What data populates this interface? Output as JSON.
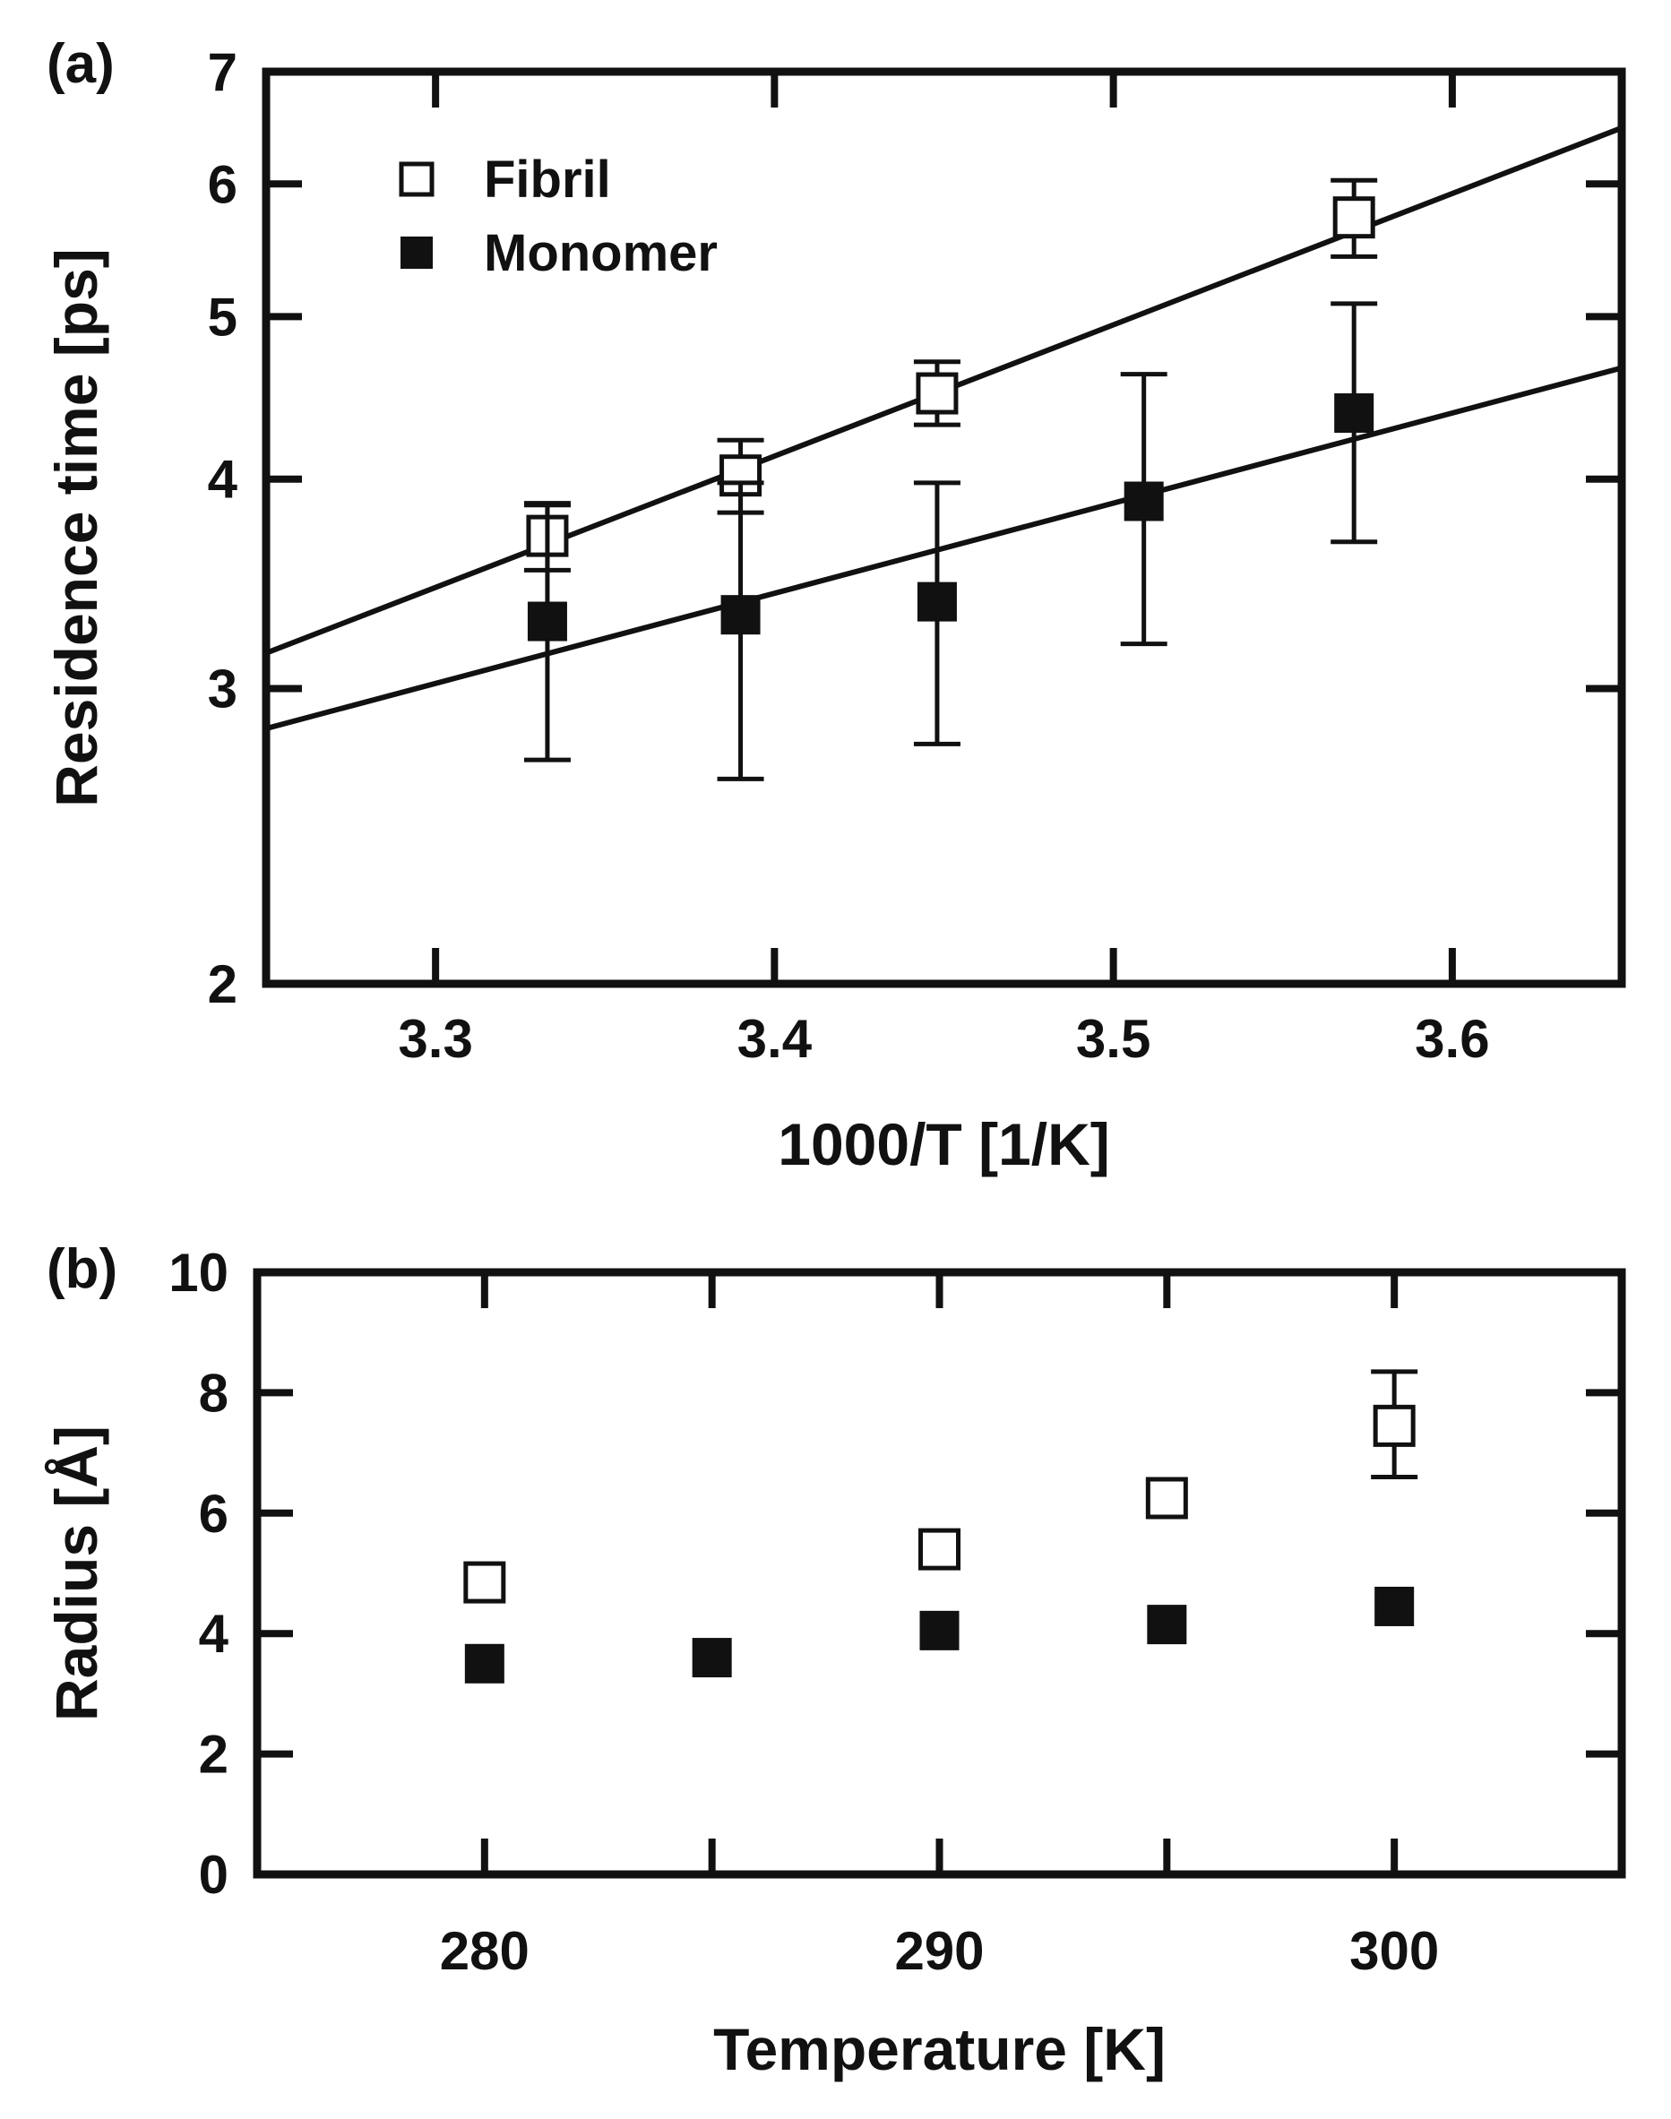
{
  "chart_data": [
    {
      "panel_label": "(a)",
      "type": "scatter",
      "yscale": "log",
      "xlabel": "1000/T [1/K]",
      "ylabel": "Residence time [ps]",
      "xlim": [
        3.25,
        3.65
      ],
      "ylim": [
        2,
        7
      ],
      "xticks": [
        3.3,
        3.4,
        3.5,
        3.6
      ],
      "xtick_labels": [
        "3.3",
        "3.4",
        "3.5",
        "3.6"
      ],
      "yticks": [
        2,
        3,
        4,
        5,
        6,
        7
      ],
      "ytick_labels": [
        "2",
        "3",
        "4",
        "5",
        "6",
        "7"
      ],
      "legend_position": "top-left",
      "series": [
        {
          "name": "Fibril",
          "marker": "open-square",
          "x": [
            3.333,
            3.39,
            3.448,
            3.571
          ],
          "y": [
            3.7,
            4.02,
            4.5,
            5.73
          ],
          "err_low": [
            3.53,
            3.82,
            4.31,
            5.43
          ],
          "err_high": [
            3.87,
            4.22,
            4.7,
            6.03
          ],
          "fit": {
            "x": [
              3.25,
              3.65
            ],
            "y": [
              3.15,
              6.48
            ]
          }
        },
        {
          "name": "Monomer",
          "marker": "filled-square",
          "x": [
            3.333,
            3.39,
            3.448,
            3.509,
            3.571
          ],
          "y": [
            3.29,
            3.32,
            3.38,
            3.88,
            4.38
          ],
          "err_low": [
            2.72,
            2.65,
            2.78,
            3.19,
            3.67
          ],
          "err_high": [
            3.86,
            3.98,
            3.98,
            4.62,
            5.09
          ],
          "fit": {
            "x": [
              3.25,
              3.65
            ],
            "y": [
              2.84,
              4.66
            ]
          }
        }
      ]
    },
    {
      "panel_label": "(b)",
      "type": "scatter",
      "xlabel": "Temperature [K]",
      "ylabel": "Radius [Å]",
      "xlim": [
        275,
        305
      ],
      "ylim": [
        0,
        10
      ],
      "xticks": [
        280,
        285,
        290,
        295,
        300
      ],
      "xtick_labels": [
        "280",
        "",
        "290",
        "",
        "300"
      ],
      "yticks": [
        0,
        2,
        4,
        6,
        8,
        10
      ],
      "ytick_labels": [
        "0",
        "2",
        "4",
        "6",
        "8",
        "10"
      ],
      "series": [
        {
          "name": "Fibril",
          "marker": "open-square",
          "x": [
            280,
            290,
            295,
            300
          ],
          "y": [
            4.85,
            5.4,
            6.25,
            7.45
          ],
          "err_low": [
            null,
            null,
            null,
            6.6
          ],
          "err_high": [
            null,
            null,
            null,
            8.35
          ]
        },
        {
          "name": "Monomer",
          "marker": "filled-square",
          "x": [
            280,
            285,
            290,
            295,
            300
          ],
          "y": [
            3.5,
            3.6,
            4.05,
            4.15,
            4.45
          ]
        }
      ]
    }
  ]
}
